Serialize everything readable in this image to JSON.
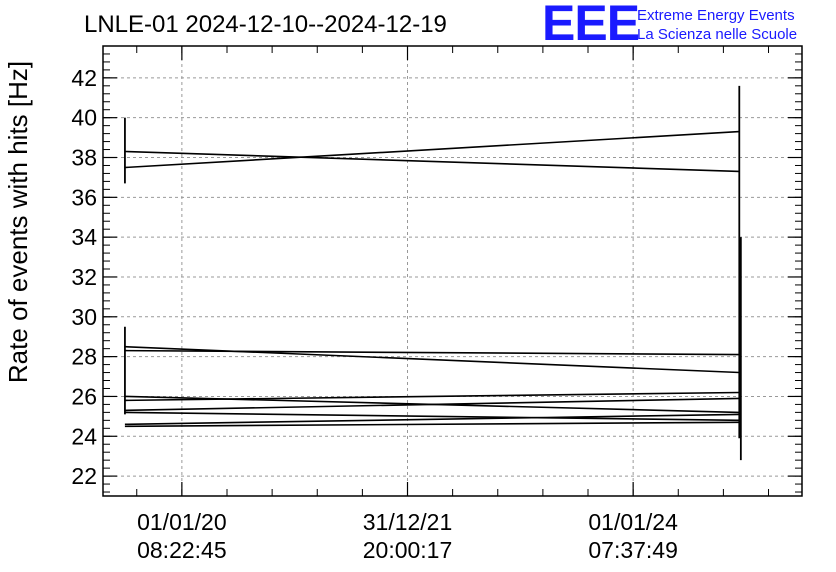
{
  "chart_data": {
    "type": "line",
    "title": "LNLE-01 2024-12-10--2024-12-19",
    "ylabel": "Rate of events with hits [Hz]",
    "xlabel": "",
    "ylim": [
      21,
      43.6
    ],
    "yticks": [
      22,
      24,
      26,
      28,
      30,
      32,
      34,
      36,
      38,
      40,
      42
    ],
    "xlim": [
      "2019-04-21 00:00:00",
      "2025-07-01 00:00:00"
    ],
    "xticks": [
      {
        "date": "2020-01-01 08:22:45",
        "line1": "01/01/20",
        "line2": "08:22:45"
      },
      {
        "date": "2021-12-31 20:00:17",
        "line1": "31/12/21",
        "line2": "20:00:17"
      },
      {
        "date": "2024-01-01 07:37:49",
        "line1": "01/01/24",
        "line2": "07:37:49"
      }
    ],
    "grid": true,
    "series": [
      {
        "x": [
          "2019-07-01",
          "2024-12-10"
        ],
        "y": [
          38.3,
          37.3
        ]
      },
      {
        "x": [
          "2019-07-01",
          "2024-12-10"
        ],
        "y": [
          37.5,
          39.3
        ]
      },
      {
        "x": [
          "2019-07-01",
          "2024-12-10"
        ],
        "y": [
          28.5,
          27.2
        ]
      },
      {
        "x": [
          "2019-07-01",
          "2024-12-10"
        ],
        "y": [
          28.3,
          28.1
        ]
      },
      {
        "x": [
          "2019-07-01",
          "2024-12-10"
        ],
        "y": [
          26.0,
          25.2
        ]
      },
      {
        "x": [
          "2019-07-01",
          "2024-12-10"
        ],
        "y": [
          25.8,
          26.2
        ]
      },
      {
        "x": [
          "2019-07-01",
          "2024-12-10"
        ],
        "y": [
          25.3,
          25.9
        ]
      },
      {
        "x": [
          "2019-07-01",
          "2024-12-10"
        ],
        "y": [
          25.2,
          24.8
        ]
      },
      {
        "x": [
          "2019-07-01",
          "2024-12-10"
        ],
        "y": [
          24.6,
          25.1
        ]
      },
      {
        "x": [
          "2019-07-01",
          "2024-12-10"
        ],
        "y": [
          24.5,
          24.7
        ]
      }
    ],
    "error_bars": [
      {
        "x": "2019-07-01",
        "low": 36.7,
        "high": 40.0
      },
      {
        "x": "2019-07-01",
        "low": 25.1,
        "high": 29.5
      },
      {
        "x": "2024-12-10",
        "low": 23.9,
        "high": 41.6
      },
      {
        "x": "2024-12-15",
        "low": 22.8,
        "high": 34.0
      }
    ]
  },
  "logo": {
    "text": "EEE",
    "line1": "Extreme Energy Events",
    "line2": "La Scienza nelle Scuole"
  }
}
